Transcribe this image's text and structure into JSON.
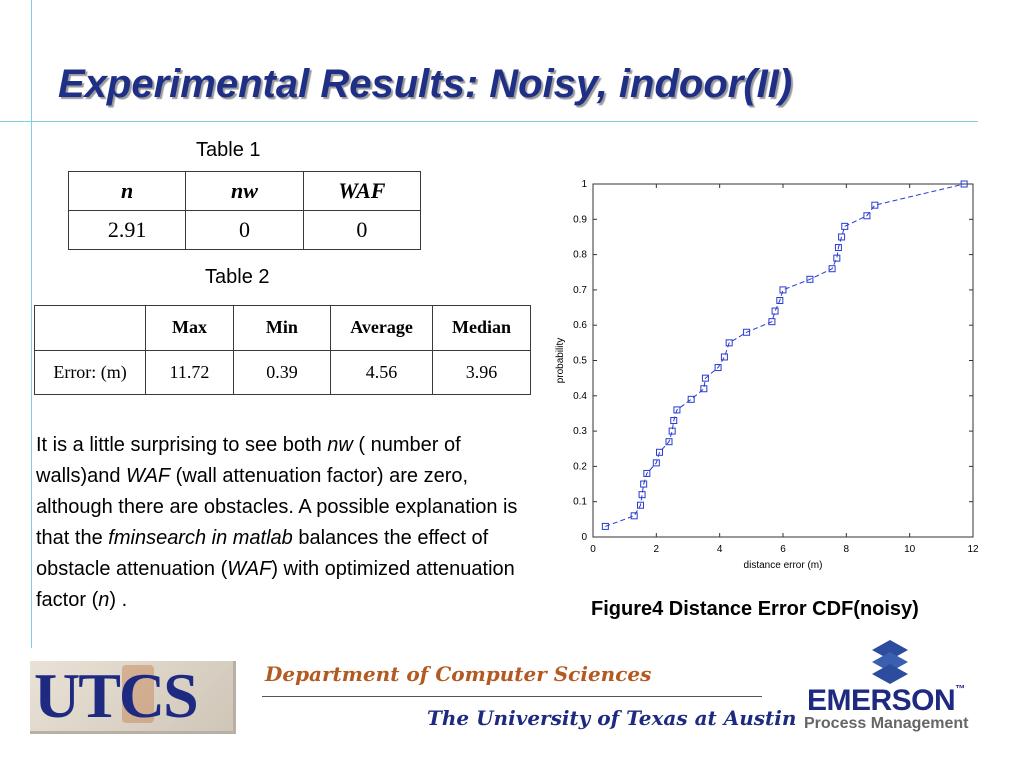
{
  "slide": {
    "title": "Experimental Results: Noisy, indoor(II)"
  },
  "table1": {
    "caption": "Table 1",
    "headers": [
      "n",
      "nw",
      "WAF"
    ],
    "row": [
      "2.91",
      "0",
      "0"
    ]
  },
  "table2": {
    "caption": "Table 2",
    "headers": [
      "",
      "Max",
      "Min",
      "Average",
      "Median"
    ],
    "row": [
      "Error: (m)",
      "11.72",
      "0.39",
      "4.56",
      "3.96"
    ]
  },
  "paragraph": {
    "s1": "It is a little surprising to see both ",
    "nw": "nw",
    "s2": " ( number of walls)and ",
    "waf": "WAF",
    "s3": " (wall attenuation factor) are zero, although there are obstacles. A possible explanation is that the ",
    "fmin": "fminsearch in matlab",
    "s4": " balances the effect of obstacle attenuation (",
    "waf2": "WAF",
    "s5": ") with optimized attenuation factor (",
    "n": "n",
    "s6": ") ."
  },
  "figure": {
    "caption": "Figure4  Distance Error CDF(noisy)"
  },
  "chart_data": {
    "type": "line",
    "xlabel": "distance error (m)",
    "ylabel": "probability",
    "xlim": [
      0,
      12
    ],
    "ylim": [
      0,
      1
    ],
    "xticks": [
      0,
      2,
      4,
      6,
      8,
      10,
      12
    ],
    "yticks": [
      0,
      0.1,
      0.2,
      0.3,
      0.4,
      0.5,
      0.6,
      0.7,
      0.8,
      0.9,
      1
    ],
    "ytick_labels": [
      "0",
      "0.1",
      "0.2",
      "0.3",
      "0.4",
      "0.5",
      "0.6",
      "0.7",
      "0.8",
      "0.9",
      "1"
    ],
    "grid": false,
    "line_style": "dashed",
    "marker": "square",
    "color": "#2a3bd1",
    "x": [
      0.39,
      1.3,
      1.5,
      1.55,
      1.6,
      1.7,
      2.0,
      2.1,
      2.4,
      2.5,
      2.55,
      2.65,
      3.1,
      3.5,
      3.55,
      3.95,
      4.15,
      4.3,
      4.85,
      5.65,
      5.75,
      5.9,
      6.0,
      6.85,
      7.55,
      7.7,
      7.75,
      7.85,
      7.95,
      8.65,
      8.9,
      11.72
    ],
    "y": [
      0.03,
      0.06,
      0.09,
      0.12,
      0.15,
      0.18,
      0.21,
      0.24,
      0.27,
      0.3,
      0.33,
      0.36,
      0.39,
      0.42,
      0.45,
      0.48,
      0.51,
      0.55,
      0.58,
      0.61,
      0.64,
      0.67,
      0.7,
      0.73,
      0.76,
      0.79,
      0.82,
      0.85,
      0.88,
      0.91,
      0.94,
      1.0
    ]
  },
  "footer": {
    "utcs_logo": "UTCS",
    "dept": "Department of Computer Sciences",
    "university": "The University of Texas at Austin",
    "emerson": "EMERSON",
    "tm": "™",
    "emerson_sub": "Process Management"
  }
}
